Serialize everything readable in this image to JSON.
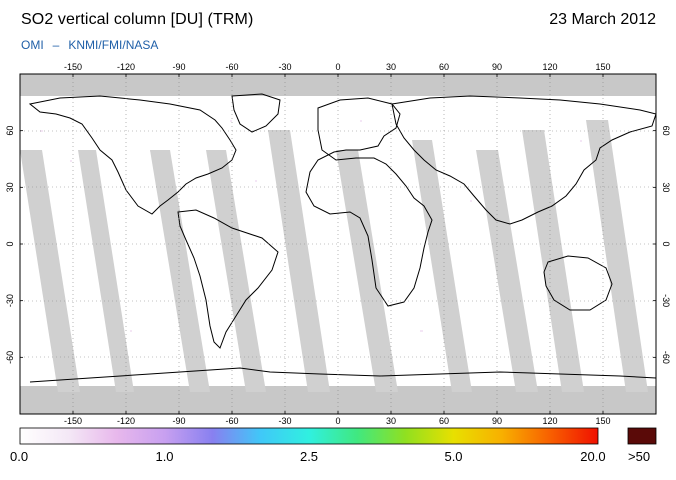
{
  "header": {
    "title": "SO2 vertical column [DU] (TRM)",
    "date": "23 March 2012",
    "credit_left": "OMI",
    "credit_sep": "–",
    "credit_right": "KNMI/FMI/NASA"
  },
  "map": {
    "lon_ticks": [
      "-150",
      "-120",
      "-90",
      "-60",
      "-30",
      "0",
      "30",
      "60",
      "90",
      "120",
      "150"
    ],
    "lat_ticks": [
      "60",
      "30",
      "0",
      "-30",
      "-60"
    ],
    "lon_range": [
      -180,
      180
    ],
    "lat_range": [
      -90,
      90
    ],
    "grid": true,
    "no_data_color": "#c8c8c8",
    "background_color": "#ffffff"
  },
  "colorbar": {
    "ticks": [
      "0.0",
      "1.0",
      "2.5",
      "5.0",
      "20.0"
    ],
    "overflow_label": ">50",
    "overflow_color": "#5a0a08",
    "gradient_colors": [
      "#ffffff",
      "#f4e8f6",
      "#e8b8ec",
      "#c8a0f0",
      "#8880f0",
      "#40c8f8",
      "#30f0e0",
      "#40e880",
      "#90e020",
      "#e8e000",
      "#f8b000",
      "#f86000",
      "#f01000"
    ]
  }
}
